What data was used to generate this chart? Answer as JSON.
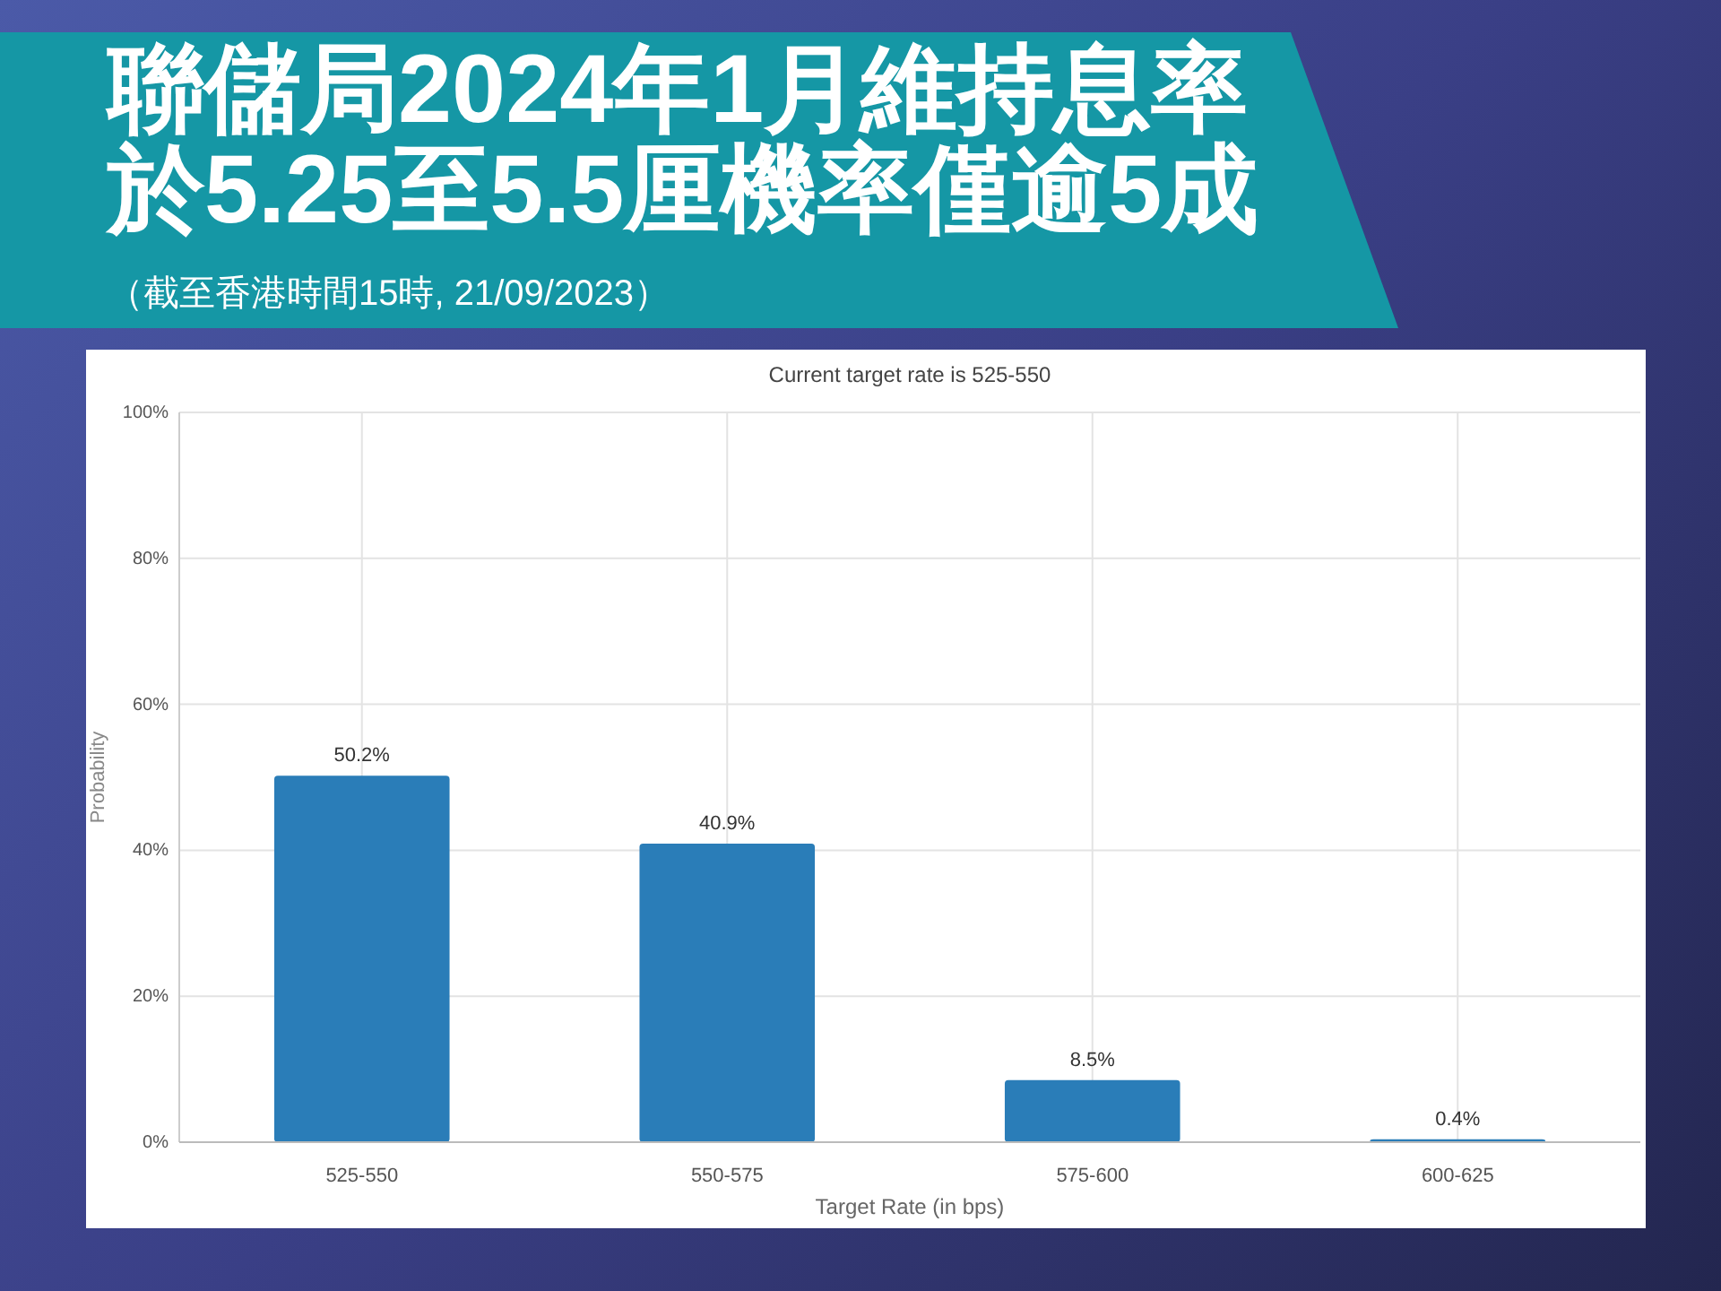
{
  "chart_data": {
    "type": "bar",
    "title": "聯儲局2024年1月維持息率於5.25至5.5厘機率僅逾5成",
    "subtitle": "Current target rate is 525-550",
    "annotations": [
      "（截至香港時間15時, 21/09/2023）"
    ],
    "xlabel": "Target Rate (in bps)",
    "ylabel": "Probability",
    "categories": [
      "525-550",
      "550-575",
      "575-600",
      "600-625"
    ],
    "values": [
      50.2,
      40.9,
      8.5,
      0.4
    ],
    "value_labels": [
      "50.2%",
      "40.9%",
      "8.5%",
      "0.4%"
    ],
    "color": "#2a7db8",
    "ylim": [
      0,
      100
    ],
    "yticks": [
      {
        "value": 0,
        "label": "0%"
      },
      {
        "value": 20,
        "label": "20%"
      },
      {
        "value": 40,
        "label": "40%"
      },
      {
        "value": 60,
        "label": "60%"
      },
      {
        "value": 80,
        "label": "80%"
      },
      {
        "value": 100,
        "label": "100%"
      }
    ],
    "grid": true
  }
}
